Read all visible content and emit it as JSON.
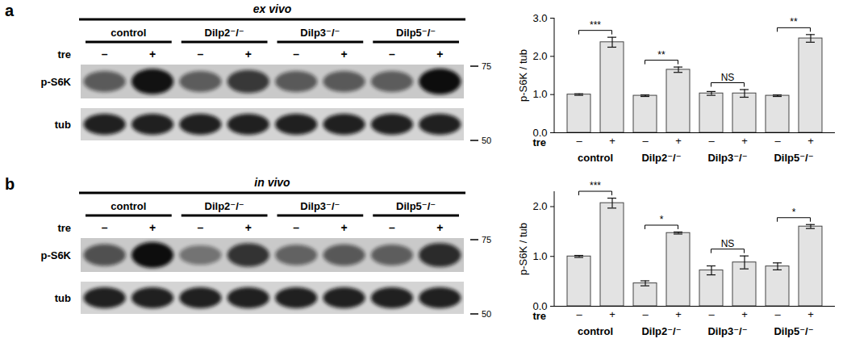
{
  "chart_data": [
    {
      "type": "bar",
      "ylabel": "p-S6K / tub",
      "xlabel": "tre",
      "categories": [
        "–",
        "+",
        "–",
        "+",
        "–",
        "+",
        "–",
        "+"
      ],
      "groups": [
        "control",
        "Dilp2⁻/⁻",
        "Dilp3⁻/⁻",
        "Dilp5⁻/⁻"
      ],
      "values": [
        1.0,
        2.37,
        0.97,
        1.65,
        1.03,
        1.03,
        0.97,
        2.47
      ],
      "errors": [
        0.02,
        0.13,
        0.02,
        0.07,
        0.05,
        0.1,
        0.02,
        0.1
      ],
      "significance": [
        "***",
        "**",
        "NS",
        "**"
      ],
      "color": "#e3e3e3",
      "ylim": [
        0,
        3
      ],
      "yticks": [
        0,
        1,
        2,
        3
      ]
    },
    {
      "type": "bar",
      "ylabel": "p-S6K / tub",
      "xlabel": "tre",
      "categories": [
        "–",
        "+",
        "–",
        "+",
        "–",
        "+",
        "–",
        "+"
      ],
      "groups": [
        "control",
        "Dilp2⁻/⁻",
        "Dilp3⁻/⁻",
        "Dilp5⁻/⁻"
      ],
      "values": [
        1.0,
        2.07,
        0.46,
        1.47,
        0.72,
        0.88,
        0.8,
        1.6
      ],
      "errors": [
        0.02,
        0.1,
        0.05,
        0.02,
        0.09,
        0.13,
        0.07,
        0.04
      ],
      "significance": [
        "***",
        "*",
        "NS",
        "*"
      ],
      "color": "#e3e3e3",
      "ylim": [
        0,
        2.3
      ],
      "yticks": [
        0,
        1,
        2
      ]
    }
  ],
  "blots": [
    {
      "panel": "a",
      "title": "ex vivo",
      "groups": [
        "control",
        "Dilp2⁻/⁻",
        "Dilp3⁻/⁻",
        "Dilp5⁻/⁻"
      ],
      "lane_label": "tre",
      "lanes": [
        "–",
        "+",
        "–",
        "+",
        "–",
        "+",
        "–",
        "+"
      ],
      "rows": [
        "p-S6K",
        "tub"
      ],
      "markers": [
        75,
        50
      ]
    },
    {
      "panel": "b",
      "title": "in vivo",
      "groups": [
        "control",
        "Dilp2⁻/⁻",
        "Dilp3⁻/⁻",
        "Dilp5⁻/⁻"
      ],
      "lane_label": "tre",
      "lanes": [
        "–",
        "+",
        "–",
        "+",
        "–",
        "+",
        "–",
        "+"
      ],
      "rows": [
        "p-S6K",
        "tub"
      ],
      "markers": [
        75,
        50
      ]
    }
  ]
}
